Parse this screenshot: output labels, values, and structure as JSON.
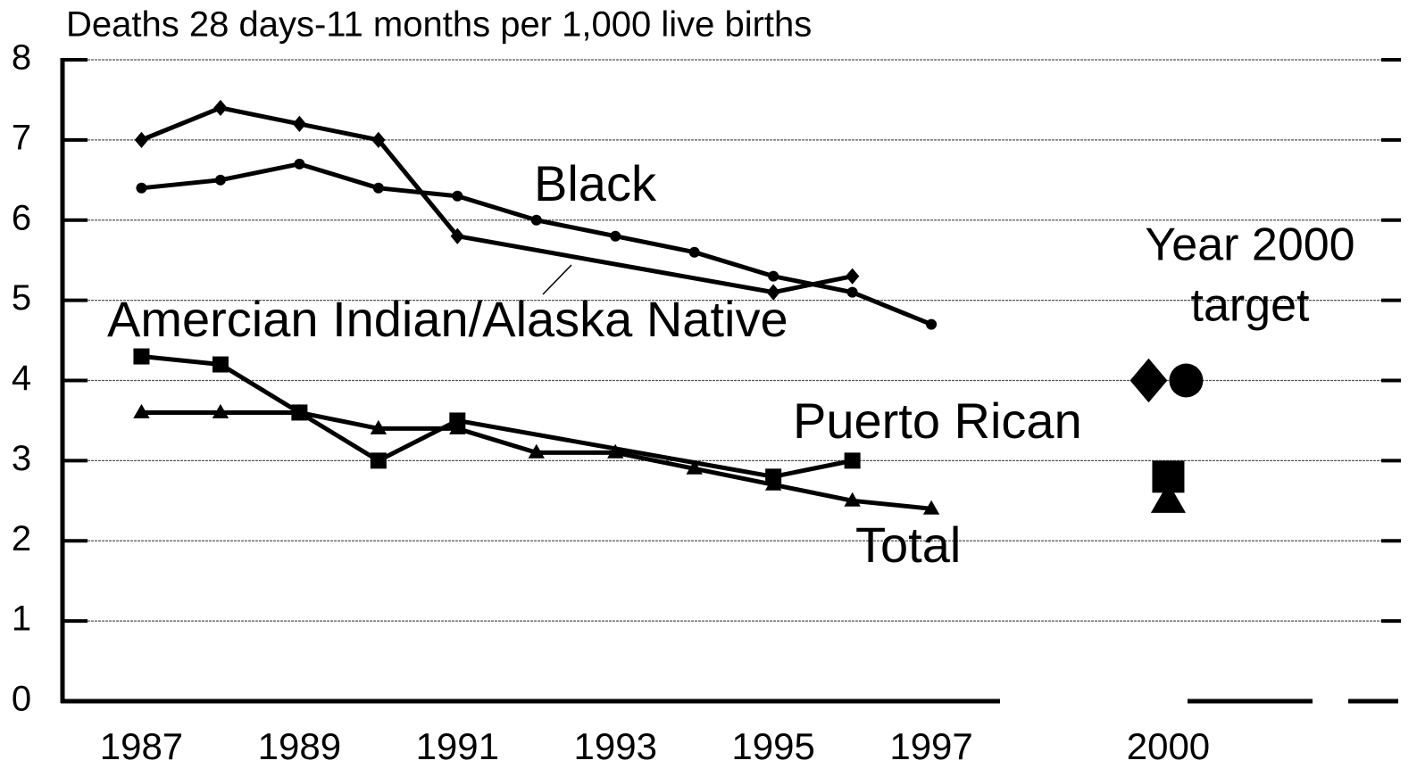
{
  "chart_data": {
    "type": "line",
    "title": "Deaths 28 days-11 months per 1,000 live births",
    "xlim": [
      1986,
      2002.9
    ],
    "xticks": [
      1987,
      1989,
      1991,
      1993,
      1995,
      1997,
      2000
    ],
    "ylim": [
      0,
      8
    ],
    "yticks": [
      0,
      1,
      2,
      3,
      4,
      5,
      6,
      7,
      8
    ],
    "grid": true,
    "target_label": [
      "Year 2000",
      "target"
    ],
    "target_x": 2000,
    "series": [
      {
        "name": "Black",
        "color": "#000000",
        "marker": "circle",
        "x": [
          1987,
          1988,
          1989,
          1990,
          1991,
          1992,
          1993,
          1994,
          1995,
          1996,
          1997
        ],
        "values": [
          6.4,
          6.5,
          6.7,
          6.4,
          6.3,
          6.0,
          5.8,
          5.6,
          5.3,
          5.1,
          4.7
        ],
        "target": 4.0
      },
      {
        "name": "Amercian Indian/Alaska Native",
        "color": "#000000",
        "marker": "diamond",
        "x": [
          1987,
          1988,
          1989,
          1990,
          1991,
          1995,
          1996
        ],
        "values": [
          7.0,
          7.4,
          7.2,
          7.0,
          5.8,
          5.1,
          5.3
        ],
        "target": 4.0
      },
      {
        "name": "Puerto Rican",
        "color": "#000000",
        "marker": "square",
        "x": [
          1987,
          1988,
          1989,
          1990,
          1991,
          1995,
          1996
        ],
        "values": [
          4.3,
          4.2,
          3.6,
          3.0,
          3.5,
          2.8,
          3.0
        ],
        "target": 2.8
      },
      {
        "name": "Total",
        "color": "#000000",
        "marker": "triangle",
        "x": [
          1987,
          1988,
          1989,
          1990,
          1991,
          1992,
          1993,
          1994,
          1995,
          1996,
          1997
        ],
        "values": [
          3.6,
          3.6,
          3.6,
          3.4,
          3.4,
          3.1,
          3.1,
          2.9,
          2.7,
          2.5,
          2.4
        ],
        "target": 2.5
      }
    ]
  }
}
